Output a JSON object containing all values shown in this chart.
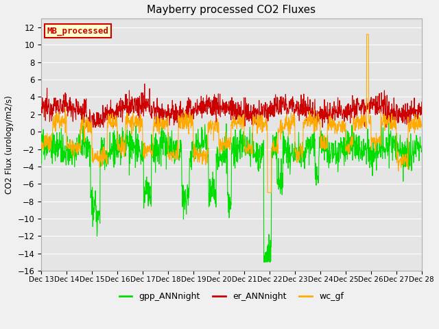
{
  "title": "Mayberry processed CO2 Fluxes",
  "ylabel": "CO2 Flux (urology/m2/s)",
  "ylim": [
    -16,
    13
  ],
  "yticks": [
    -16,
    -14,
    -12,
    -10,
    -8,
    -6,
    -4,
    -2,
    0,
    2,
    4,
    6,
    8,
    10,
    12
  ],
  "xtick_labels": [
    "Dec 13",
    "Dec 14",
    "Dec 15",
    "Dec 16",
    "Dec 17",
    "Dec 18",
    "Dec 19",
    "Dec 20",
    "Dec 21",
    "Dec 22",
    "Dec 23",
    "Dec 24",
    "Dec 25",
    "Dec 26",
    "Dec 27",
    "Dec 28"
  ],
  "gpp_color": "#00dd00",
  "er_color": "#cc0000",
  "wc_color": "#ffaa00",
  "legend_label": "MB_processed",
  "legend_bg": "#ffffcc",
  "legend_border": "#cc0000",
  "bg_color": "#e5e5e5",
  "grid_color": "#ffffff",
  "line_width": 0.8,
  "n_points": 1440,
  "fig_width": 6.4,
  "fig_height": 4.8,
  "dpi": 100
}
